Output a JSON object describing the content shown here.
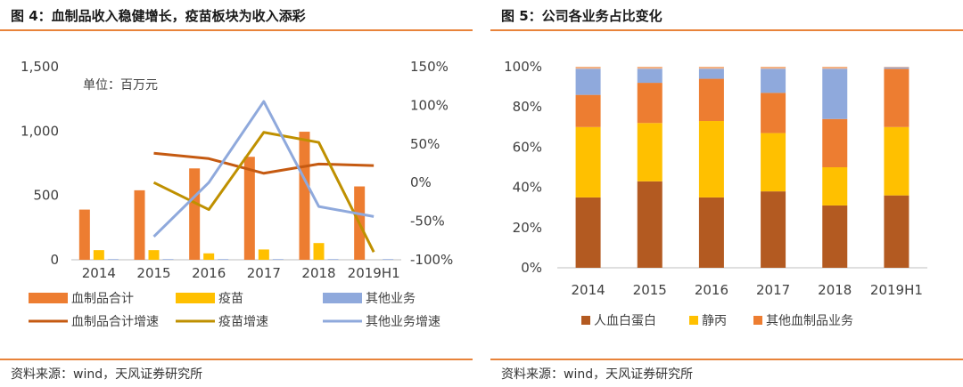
{
  "left_panel": {
    "title": "图 4：血制品收入稳健增长，疫苗板块为收入添彩",
    "source": "资料来源：wind，天风证券研究所"
  },
  "right_panel": {
    "title": "图 5：公司各业务占比变化",
    "source": "资料来源：wind，天风证券研究所"
  },
  "chart_data": [
    {
      "type": "bar",
      "combo_with": "line",
      "title": "图 4：血制品收入稳健增长，疫苗板块为收入添彩",
      "unit_note": "单位：百万元",
      "categories": [
        "2014",
        "2015",
        "2016",
        "2017",
        "2018",
        "2019H1"
      ],
      "y_left": {
        "ylim": [
          0,
          1500
        ],
        "ticks": [
          "0",
          "500",
          "1,000",
          "1,500"
        ],
        "tick_values": [
          0,
          500,
          1000,
          1500
        ]
      },
      "y_right": {
        "ylim": [
          -100,
          150
        ],
        "ticks": [
          "-100%",
          "-50%",
          "0%",
          "50%",
          "100%",
          "150%"
        ],
        "tick_values": [
          -100,
          -50,
          0,
          50,
          100,
          150
        ]
      },
      "bar_series": [
        {
          "name": "血制品合计",
          "color": "#ed7d31",
          "values": [
            390,
            540,
            710,
            800,
            995,
            570
          ]
        },
        {
          "name": "疫苗",
          "color": "#ffc000",
          "values": [
            75,
            75,
            50,
            80,
            130,
            0
          ]
        },
        {
          "name": "其他业务",
          "color": "#8fa9dc",
          "values": [
            5,
            5,
            5,
            5,
            5,
            5
          ]
        }
      ],
      "line_series": [
        {
          "name": "血制品合计增速",
          "color": "#c55a11",
          "values": [
            null,
            38,
            31,
            12,
            24,
            22
          ]
        },
        {
          "name": "疫苗增速",
          "color": "#bf9000",
          "values": [
            null,
            0,
            -35,
            65,
            52,
            -90
          ]
        },
        {
          "name": "其他业务增速",
          "color": "#8fa9dc",
          "values": [
            null,
            -70,
            0,
            105,
            -31,
            -44
          ]
        }
      ],
      "legend_position": "bottom",
      "grid": false
    },
    {
      "type": "bar",
      "stacked": true,
      "title": "图 5：公司各业务占比变化",
      "categories": [
        "2014",
        "2015",
        "2016",
        "2017",
        "2018",
        "2019H1"
      ],
      "ylim": [
        0,
        100
      ],
      "ticks": [
        "0%",
        "20%",
        "40%",
        "60%",
        "80%",
        "100%"
      ],
      "tick_values": [
        0,
        20,
        40,
        60,
        80,
        100
      ],
      "series": [
        {
          "name": "人血白蛋白",
          "color": "#b35a21",
          "values": [
            35,
            43,
            35,
            38,
            31,
            36
          ]
        },
        {
          "name": "静丙",
          "color": "#ffc000",
          "values": [
            35,
            29,
            38,
            29,
            19,
            34
          ]
        },
        {
          "name": "其他血制品业务",
          "color": "#ed7d31",
          "values": [
            16,
            20,
            21,
            20,
            24,
            29
          ]
        },
        {
          "name": "",
          "color": "#8fa9dc",
          "values": [
            13,
            7,
            5,
            12,
            25,
            0.7
          ]
        },
        {
          "name": "",
          "color": "#f4b183",
          "values": [
            1,
            1,
            1,
            1,
            1,
            0.3
          ]
        }
      ],
      "legend_position": "bottom",
      "legend_entries": [
        "人血白蛋白",
        "静丙",
        "其他血制品业务"
      ],
      "grid": false
    }
  ]
}
